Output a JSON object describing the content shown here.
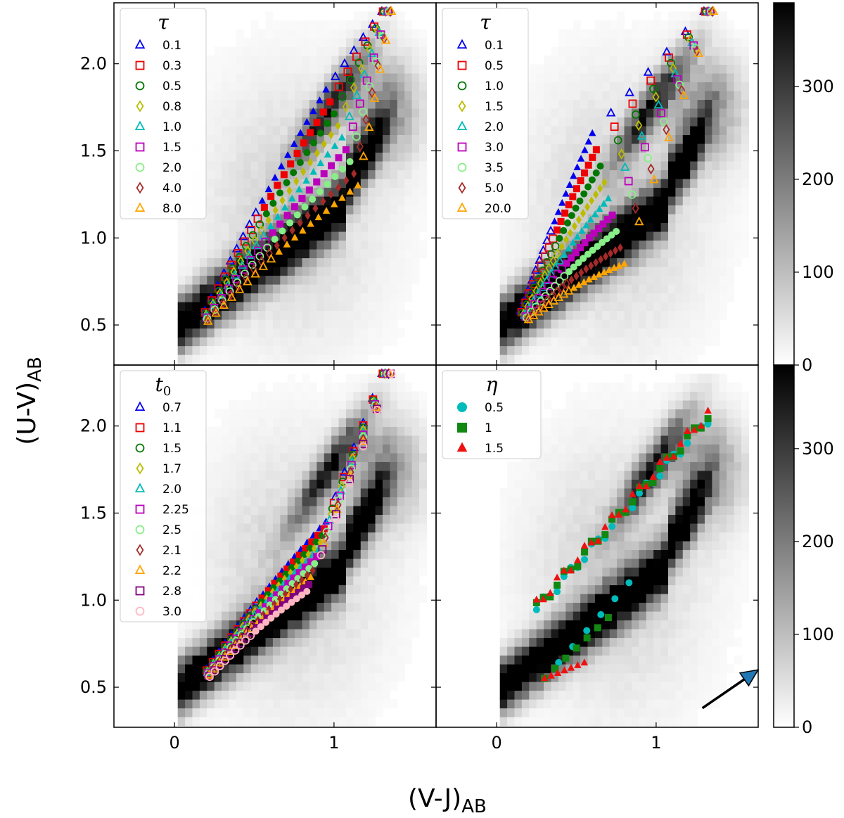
{
  "figure": {
    "xlabel_main": "(V-J)",
    "xlabel_sub": "AB",
    "ylabel_main": "(U-V)",
    "ylabel_sub": "AB"
  },
  "chart_data": {
    "type": "scatter",
    "xlim": [
      -0.38,
      1.64
    ],
    "ylim": [
      0.27,
      2.35
    ],
    "xticks": [
      0,
      1
    ],
    "yticks": [
      0.5,
      1.0,
      1.5,
      2.0
    ],
    "xtick_labels": [
      "0",
      "1"
    ],
    "ytick_labels": [
      "0.5",
      "1.0",
      "1.5",
      "2.0"
    ],
    "colorbar": {
      "range": [
        0,
        390
      ],
      "ticks": [
        0,
        100,
        200,
        300
      ],
      "tick_labels": [
        "0",
        "100",
        "200",
        "300"
      ]
    },
    "background": "grayscale 2D histogram of galaxy counts along the UVJ sequence",
    "panels": [
      {
        "id": "top-left",
        "legend_title": "τ",
        "series": [
          {
            "label": "0.1",
            "color": "#0000ee",
            "marker": "triangle"
          },
          {
            "label": "0.3",
            "color": "#ee0000",
            "marker": "square"
          },
          {
            "label": "0.5",
            "color": "#007700",
            "marker": "circle"
          },
          {
            "label": "0.8",
            "color": "#bbbb00",
            "marker": "diamond"
          },
          {
            "label": "1.0",
            "color": "#00bbbb",
            "marker": "triangle"
          },
          {
            "label": "1.5",
            "color": "#bb00bb",
            "marker": "square"
          },
          {
            "label": "2.0",
            "color": "#88ee88",
            "marker": "circle"
          },
          {
            "label": "4.0",
            "color": "#a52a2a",
            "marker": "diamond"
          },
          {
            "label": "8.0",
            "color": "#ffa500",
            "marker": "triangle"
          }
        ]
      },
      {
        "id": "top-right",
        "legend_title": "τ",
        "series": [
          {
            "label": "0.1",
            "color": "#0000ee",
            "marker": "triangle"
          },
          {
            "label": "0.5",
            "color": "#ee0000",
            "marker": "square"
          },
          {
            "label": "1.0",
            "color": "#007700",
            "marker": "circle"
          },
          {
            "label": "1.5",
            "color": "#bbbb00",
            "marker": "diamond"
          },
          {
            "label": "2.0",
            "color": "#00bbbb",
            "marker": "triangle"
          },
          {
            "label": "3.0",
            "color": "#bb00bb",
            "marker": "square"
          },
          {
            "label": "3.5",
            "color": "#88ee88",
            "marker": "circle"
          },
          {
            "label": "5.0",
            "color": "#a52a2a",
            "marker": "diamond"
          },
          {
            "label": "20.0",
            "color": "#ffa500",
            "marker": "triangle"
          }
        ]
      },
      {
        "id": "bottom-left",
        "legend_title": "t",
        "legend_title_sub": "0",
        "series": [
          {
            "label": "0.7",
            "color": "#0000ee",
            "marker": "triangle"
          },
          {
            "label": "1.1",
            "color": "#ee0000",
            "marker": "square"
          },
          {
            "label": "1.5",
            "color": "#007700",
            "marker": "circle"
          },
          {
            "label": "1.7",
            "color": "#bbbb00",
            "marker": "diamond"
          },
          {
            "label": "2.0",
            "color": "#00bbbb",
            "marker": "triangle"
          },
          {
            "label": "2.25",
            "color": "#bb00bb",
            "marker": "square"
          },
          {
            "label": "2.5",
            "color": "#88ee88",
            "marker": "circle"
          },
          {
            "label": "2.1",
            "color": "#a52a2a",
            "marker": "diamond"
          },
          {
            "label": "2.2",
            "color": "#ffa500",
            "marker": "triangle"
          },
          {
            "label": "2.8",
            "color": "#800080",
            "marker": "square"
          },
          {
            "label": "3.0",
            "color": "#ffb6c1",
            "marker": "circle"
          }
        ]
      },
      {
        "id": "bottom-right",
        "legend_title": "η",
        "series": [
          {
            "label": "0.5",
            "color": "#00bbbb",
            "marker": "circle",
            "filled": true
          },
          {
            "label": "1",
            "color": "#118811",
            "marker": "square",
            "filled": true
          },
          {
            "label": "1.5",
            "color": "#ee1111",
            "marker": "triangle",
            "filled": true
          }
        ],
        "dust_vector": {
          "from": [
            1.29,
            0.38
          ],
          "to": [
            1.64,
            0.6
          ],
          "color": "#1f77b4"
        }
      }
    ]
  }
}
